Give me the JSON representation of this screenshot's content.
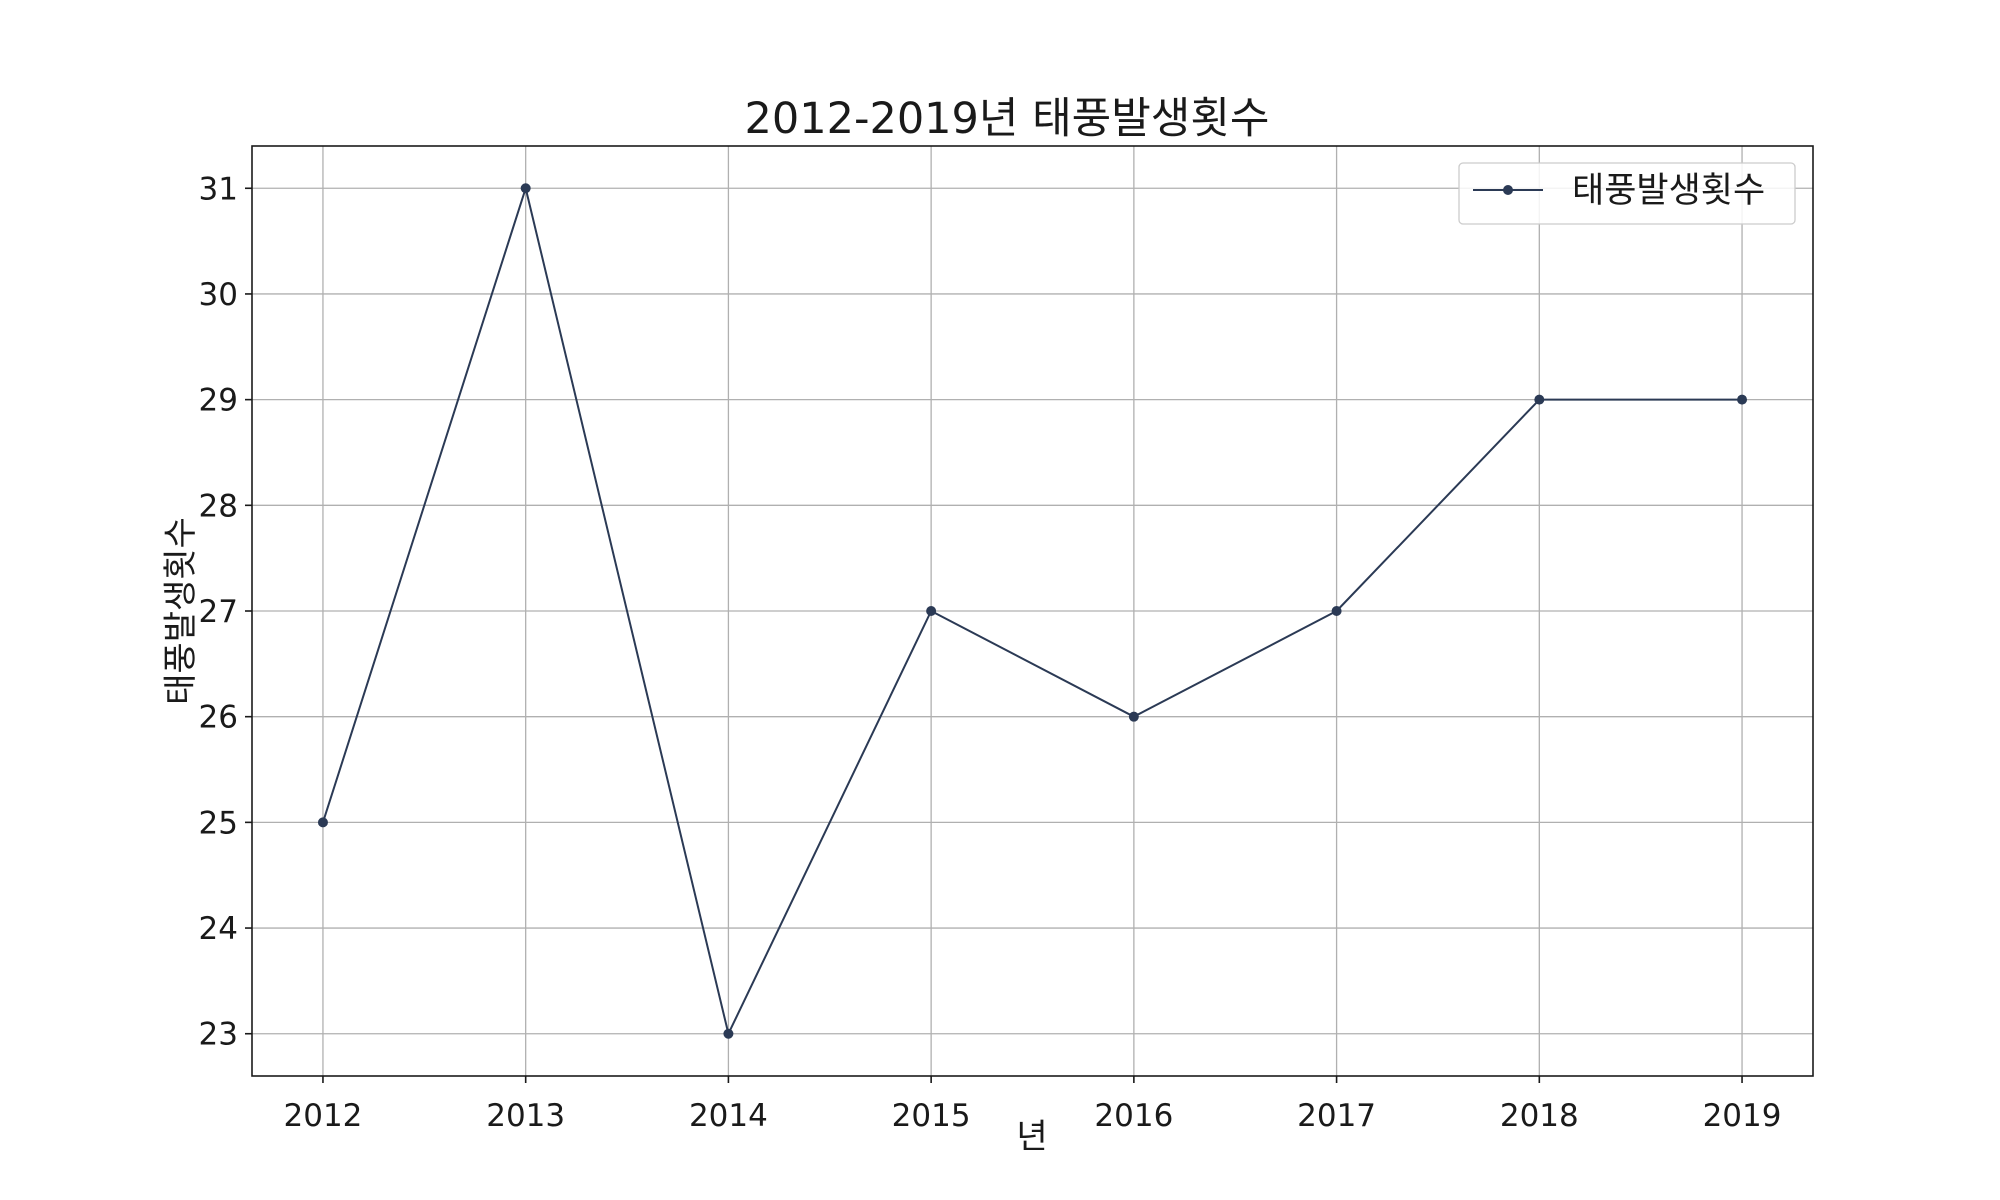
{
  "chart_data": {
    "type": "line",
    "title": "2012-2019년 태풍발생횟수",
    "xlabel": "년",
    "ylabel": "태풍발생횟수",
    "x": [
      2012,
      2013,
      2014,
      2015,
      2016,
      2017,
      2018,
      2019
    ],
    "x_tick_labels": [
      "2012",
      "2013",
      "2014",
      "2015",
      "2016",
      "2017",
      "2018",
      "2019"
    ],
    "y_ticks": [
      23,
      24,
      25,
      26,
      27,
      28,
      29,
      30,
      31
    ],
    "y_tick_labels": [
      "23",
      "24",
      "25",
      "26",
      "27",
      "28",
      "29",
      "30",
      "31"
    ],
    "xlim": [
      2011.65,
      2019.35
    ],
    "ylim": [
      22.6,
      31.4
    ],
    "grid": true,
    "legend_position": "upper-right",
    "series": [
      {
        "name": "태풍발생횟수",
        "color": "#2b3a55",
        "marker": "circle",
        "values": [
          25,
          31,
          23,
          27,
          26,
          27,
          29,
          29
        ]
      }
    ]
  }
}
